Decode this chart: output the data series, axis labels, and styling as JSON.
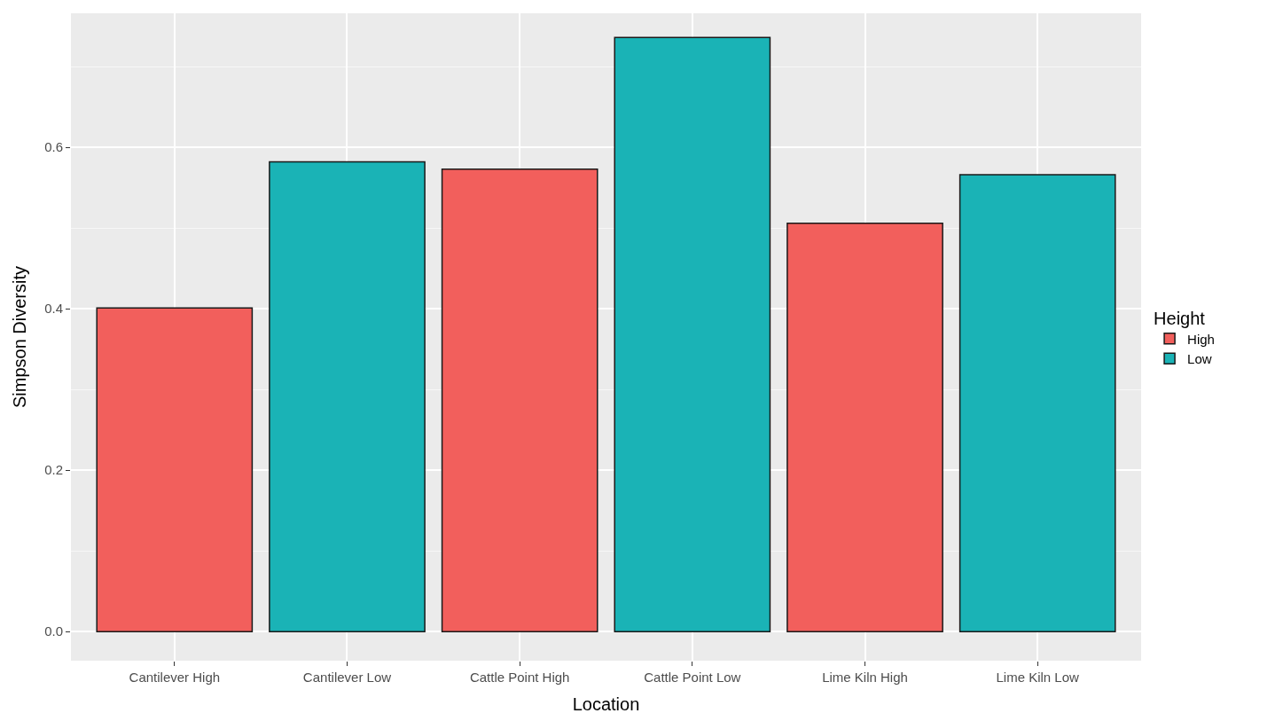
{
  "chart_data": {
    "type": "bar",
    "xlabel": "Location",
    "ylabel": "Simpson Diversity",
    "legend_title": "Height",
    "categories": [
      "Cantilever High",
      "Cantilever Low",
      "Cattle Point High",
      "Cattle Point Low",
      "Lime Kiln High",
      "Lime Kiln Low"
    ],
    "series": [
      {
        "name": "High",
        "color": "#f25f5c",
        "values": [
          0.401,
          null,
          0.573,
          null,
          0.506,
          null
        ]
      },
      {
        "name": "Low",
        "color": "#1ab3b6",
        "values": [
          null,
          0.582,
          null,
          0.736,
          null,
          0.566
        ]
      }
    ],
    "ylim": [
      -0.036,
      0.766
    ],
    "yticks": [
      {
        "value": 0,
        "label": "0.0"
      },
      {
        "value": 0.2,
        "label": "0.2"
      },
      {
        "value": 0.4,
        "label": "0.4"
      },
      {
        "value": 0.6,
        "label": "0.6"
      }
    ],
    "grid": true,
    "legend": "right"
  }
}
